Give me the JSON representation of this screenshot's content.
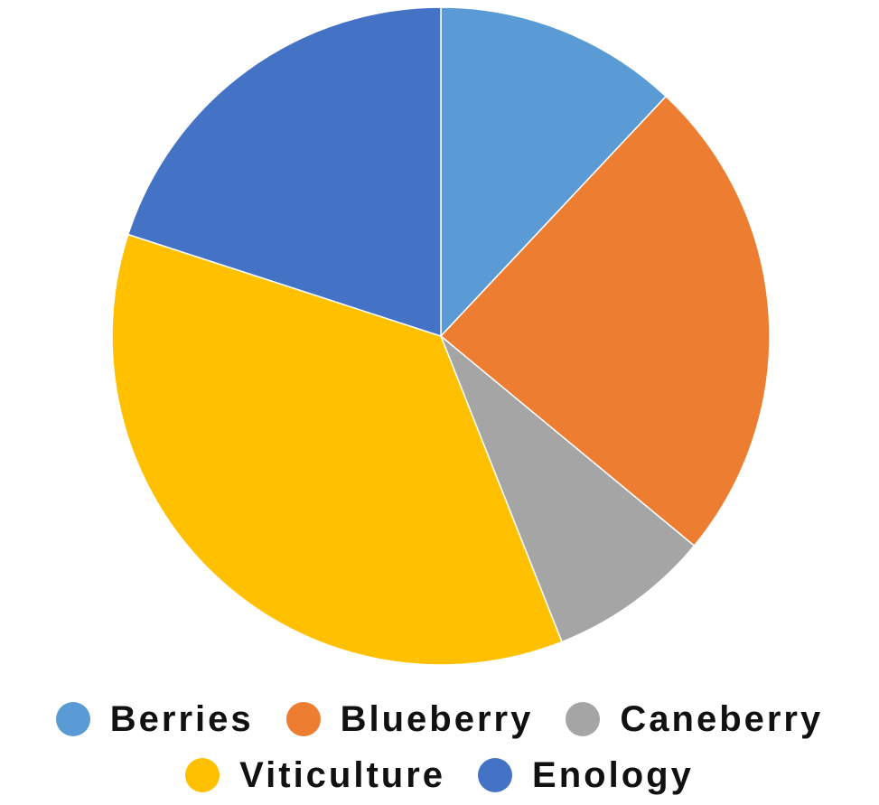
{
  "chart_data": {
    "type": "pie",
    "categories": [
      "Berries",
      "Blueberry",
      "Caneberry",
      "Viticulture",
      "Enology"
    ],
    "values": [
      12,
      24,
      8,
      36,
      20
    ],
    "colors": [
      "#5b9bd5",
      "#ed7d31",
      "#a5a5a5",
      "#ffc000",
      "#4472c4"
    ],
    "legend": "bottom"
  }
}
